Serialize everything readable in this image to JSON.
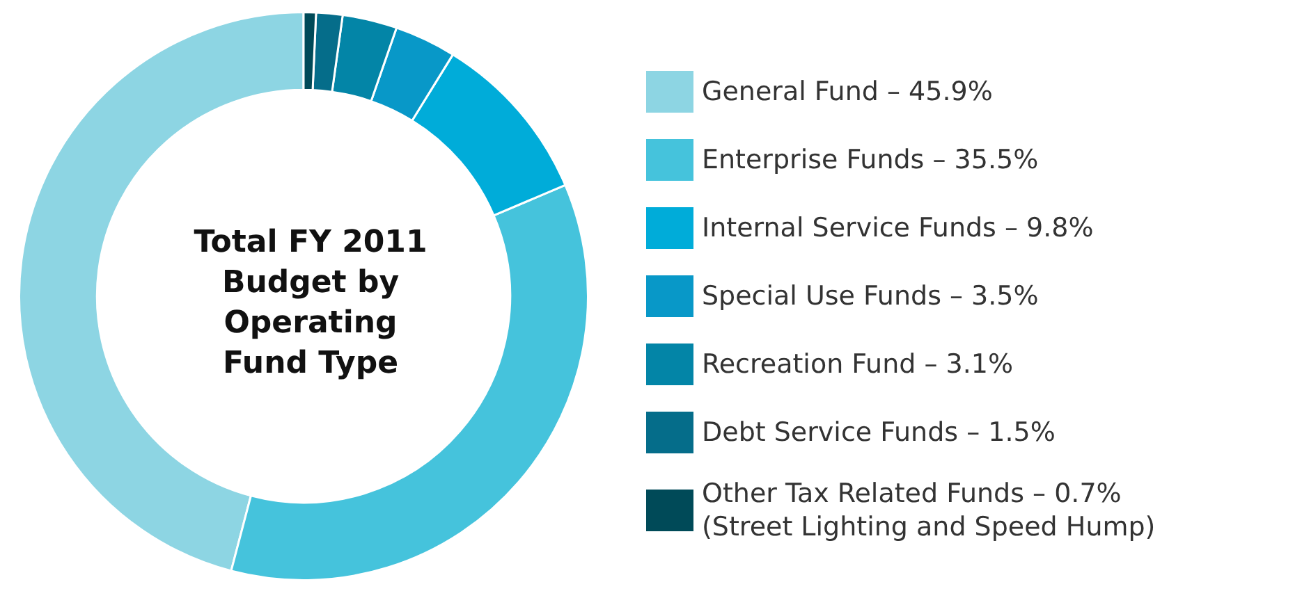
{
  "chart_data": {
    "type": "donut",
    "title": "Total FY 2011\nBudget by\nOperating\nFund Type",
    "categories": [
      "General Fund – 45.9%",
      "Enterprise Funds – 35.5%",
      "Internal Service Funds – 9.8%",
      "Special Use Funds – 3.5%",
      "Recreation Fund – 3.1%",
      "Debt Service Funds – 1.5%",
      "Other Tax Related Funds – 0.7%\n(Street Lighting and Speed Hump)"
    ],
    "values": [
      45.9,
      35.5,
      9.8,
      3.5,
      3.1,
      1.5,
      0.7
    ],
    "colors": [
      "#8dd5e3",
      "#45c3dc",
      "#00acd9",
      "#0898c8",
      "#0385a7",
      "#056d8a",
      "#004a58"
    ],
    "legend": "right"
  }
}
